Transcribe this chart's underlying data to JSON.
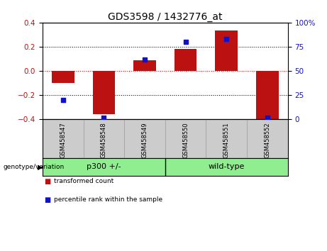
{
  "title": "GDS3598 / 1432776_at",
  "samples": [
    "GSM458547",
    "GSM458548",
    "GSM458549",
    "GSM458550",
    "GSM458551",
    "GSM458552"
  ],
  "transformed_count": [
    -0.1,
    -0.355,
    0.09,
    0.18,
    0.335,
    -0.4
  ],
  "percentile_rank": [
    20,
    2,
    62,
    80,
    83,
    2
  ],
  "bar_color": "#bb1111",
  "square_color": "#1111cc",
  "ylim_left": [
    -0.4,
    0.4
  ],
  "ylim_right": [
    0,
    100
  ],
  "yticks_left": [
    -0.4,
    -0.2,
    0.0,
    0.2,
    0.4
  ],
  "yticks_right": [
    0,
    25,
    50,
    75,
    100
  ],
  "ytick_labels_right": [
    "0",
    "25",
    "50",
    "75",
    "100%"
  ],
  "hlines": [
    -0.2,
    0.0,
    0.2
  ],
  "hline_colors": [
    "black",
    "#cc0000",
    "black"
  ],
  "hline_styles": [
    "dotted",
    "dotted",
    "dotted"
  ],
  "groups": [
    {
      "label": "p300 +/-",
      "indices": [
        0,
        1,
        2
      ],
      "color": "#90ee90"
    },
    {
      "label": "wild-type",
      "indices": [
        3,
        4,
        5
      ],
      "color": "#90ee90"
    }
  ],
  "group_label": "genotype/variation",
  "legend_items": [
    {
      "label": "transformed count",
      "color": "#bb1111"
    },
    {
      "label": "percentile rank within the sample",
      "color": "#1111cc"
    }
  ],
  "background_color": "#ffffff",
  "tick_area_color": "#cccccc",
  "title_fontsize": 10,
  "axis_fontsize": 7.5,
  "label_fontsize": 7,
  "bar_width": 0.55
}
